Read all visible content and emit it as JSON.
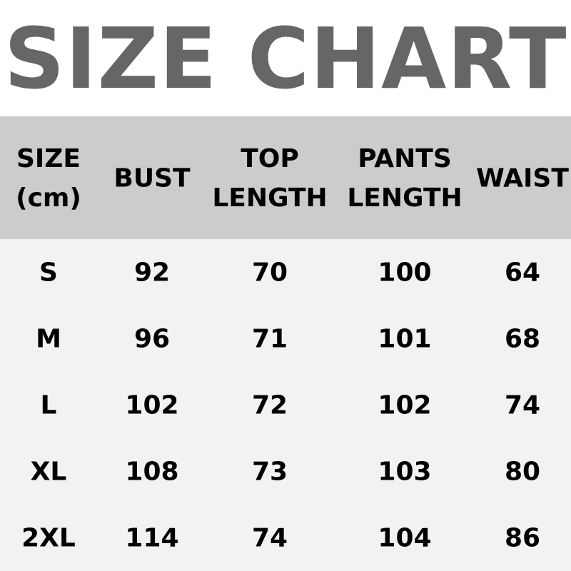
{
  "title": "SIZE CHART",
  "headers": [
    [
      "SIZE",
      "(cm)"
    ],
    [
      "BUST"
    ],
    [
      "TOP",
      "LENGTH"
    ],
    [
      "PANTS",
      "LENGTH"
    ],
    [
      "WAIST"
    ]
  ],
  "rows": [
    [
      "S",
      "92",
      "70",
      "100",
      "64"
    ],
    [
      "M",
      "96",
      "71",
      "101",
      "68"
    ],
    [
      "L",
      "102",
      "72",
      "102",
      "74"
    ],
    [
      "XL",
      "108",
      "73",
      "103",
      "80"
    ],
    [
      "2XL",
      "114",
      "74",
      "104",
      "86"
    ]
  ],
  "colors": {
    "title": "#666666",
    "header_bg": "#cccccc",
    "body_bg": "#f2f2f2"
  }
}
